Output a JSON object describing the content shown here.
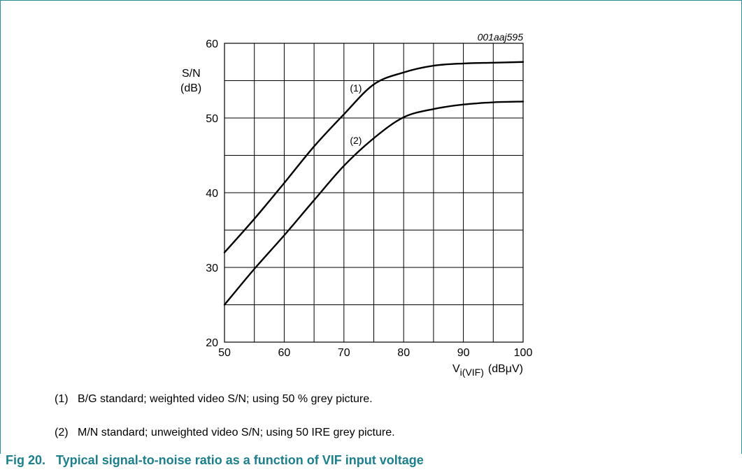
{
  "figure_code": "001aaj595",
  "colors": {
    "frame": "#2a8f9b",
    "caption": "#1b7f8c",
    "lines": "#000000"
  },
  "notes": [
    {
      "num": "(1)",
      "text": "B/G standard; weighted video S/N; using 50 % grey picture."
    },
    {
      "num": "(2)",
      "text": "M/N standard; unweighted video S/N; using 50 IRE grey picture."
    }
  ],
  "caption": {
    "fig": "Fig 20.",
    "title": "Typical signal-to-noise ratio as a function of VIF input voltage"
  },
  "chart_data": {
    "type": "line",
    "title": "",
    "ylabel": "S/N",
    "yunit": "(dB)",
    "xlabel_main": "V",
    "xlabel_sub": "i(VIF)",
    "xunit": "(dBμV)",
    "xlim": [
      50,
      100
    ],
    "ylim": [
      20,
      60
    ],
    "x_ticks": [
      "50",
      "60",
      "70",
      "80",
      "90",
      "100"
    ],
    "y_ticks": [
      "20",
      "30",
      "40",
      "50",
      "60"
    ],
    "grid": true,
    "series": [
      {
        "name": "(1)",
        "label_at": [
          72,
          54
        ],
        "x": [
          50,
          55,
          60,
          65,
          70,
          75,
          80,
          85,
          90,
          95,
          100
        ],
        "y": [
          32,
          36.5,
          41.3,
          46.2,
          50.5,
          54.5,
          56.1,
          57,
          57.3,
          57.4,
          57.5
        ]
      },
      {
        "name": "(2)",
        "label_at": [
          72,
          47
        ],
        "x": [
          50,
          55,
          60,
          65,
          70,
          75,
          80,
          85,
          90,
          95,
          100
        ],
        "y": [
          25,
          29.8,
          34.3,
          39,
          43.6,
          47.3,
          50.1,
          51.2,
          51.8,
          52.1,
          52.2
        ]
      }
    ]
  }
}
